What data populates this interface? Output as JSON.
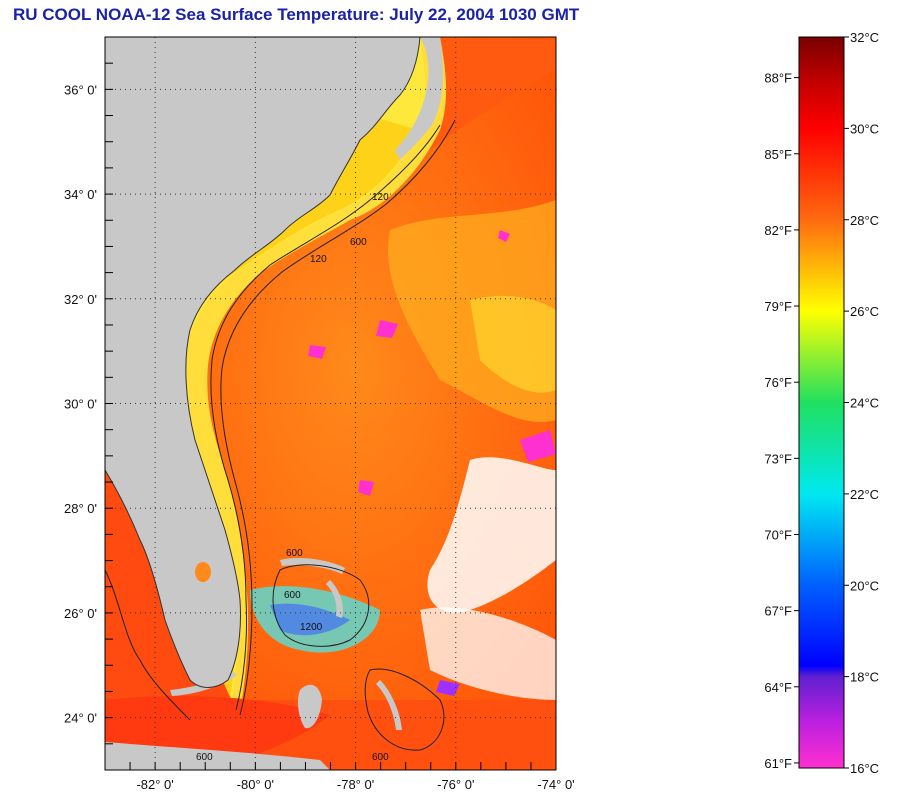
{
  "title": "RU COOL  NOAA-12  Sea Surface Temperature:  July 22, 2004 1030 GMT",
  "map": {
    "lat_labels": [
      "36° 0'",
      "34° 0'",
      "32° 0'",
      "30° 0'",
      "28° 0'",
      "26° 0'",
      "24° 0'"
    ],
    "lon_labels": [
      "-82° 0'",
      "-80° 0'",
      "-78° 0'",
      "-76° 0'",
      "-74° 0'"
    ],
    "lat_values": [
      36,
      34,
      32,
      30,
      28,
      26,
      24
    ],
    "lon_values": [
      -82,
      -80,
      -78,
      -76,
      -74
    ],
    "lat_range": [
      23,
      37
    ],
    "lon_range": [
      -83,
      -74
    ],
    "isobath_labels": [
      "600",
      "120",
      "120",
      "600",
      "600",
      "1200",
      "600",
      "600"
    ],
    "colors": {
      "land": "#c8c8c8",
      "cloud": "#ffffff",
      "gulf_stream": "#ff6a10",
      "shelf": "#ffd21a",
      "title": "#1a23a8"
    }
  },
  "colorbar": {
    "celsius_labels": [
      "32°C",
      "30°C",
      "28°C",
      "26°C",
      "24°C",
      "22°C",
      "20°C",
      "18°C",
      "16°C"
    ],
    "fahrenheit_labels": [
      "88°F",
      "85°F",
      "82°F",
      "79°F",
      "76°F",
      "73°F",
      "70°F",
      "67°F",
      "64°F",
      "61°F"
    ],
    "celsius_values": [
      32,
      30,
      28,
      26,
      24,
      22,
      20,
      18,
      16
    ],
    "fahrenheit_values": [
      88,
      85,
      82,
      79,
      76,
      73,
      70,
      67,
      64,
      61
    ]
  }
}
